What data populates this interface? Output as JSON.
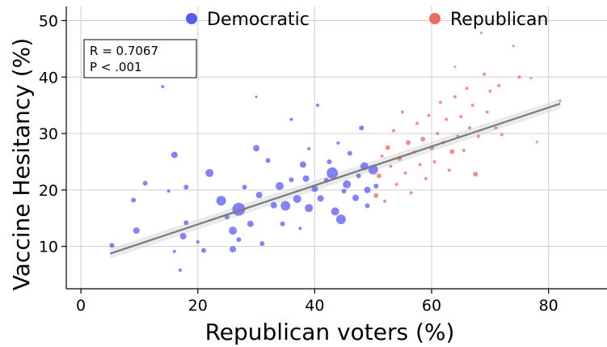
{
  "chart_data": {
    "type": "scatter",
    "title": "",
    "xlabel": "Republican voters (%)",
    "ylabel": "Vaccine Hesitancy (%)",
    "xlim": [
      -2.5,
      90
    ],
    "ylim": [
      2.5,
      52.5
    ],
    "xticks": [
      0,
      20,
      40,
      60,
      80
    ],
    "yticks": [
      10,
      20,
      30,
      40,
      50
    ],
    "grid": true,
    "legend_position": "top",
    "annotation": {
      "r_text": "R = 0.7067",
      "p_text": "P < .001"
    },
    "regression": {
      "slope": 0.345,
      "intercept": 7.0,
      "x_range": [
        5,
        82
      ],
      "ci_halfwidth": 0.9
    },
    "series": [
      {
        "name": "Democratic",
        "color": "#5b5bf0",
        "points": [
          [
            5.3,
            10.2,
            3
          ],
          [
            9,
            18.2,
            3
          ],
          [
            9.5,
            12.8,
            4
          ],
          [
            11,
            21.2,
            3
          ],
          [
            14,
            38.3,
            2
          ],
          [
            15,
            19.8,
            2
          ],
          [
            16,
            26.2,
            4
          ],
          [
            16,
            9.1,
            2
          ],
          [
            17,
            5.8,
            2
          ],
          [
            17.5,
            11.8,
            4
          ],
          [
            18,
            20.5,
            3
          ],
          [
            18,
            14.2,
            3
          ],
          [
            20,
            10.8,
            2
          ],
          [
            21,
            9.3,
            3
          ],
          [
            22,
            23.0,
            5
          ],
          [
            24,
            18.1,
            6
          ],
          [
            25,
            15.2,
            3
          ],
          [
            26,
            9.5,
            4
          ],
          [
            26,
            12.8,
            5
          ],
          [
            27,
            16.6,
            8
          ],
          [
            27,
            11.2,
            3
          ],
          [
            28,
            20.5,
            3
          ],
          [
            29,
            14.0,
            4
          ],
          [
            30,
            36.5,
            1.5
          ],
          [
            30,
            27.4,
            4
          ],
          [
            30.5,
            19.1,
            4
          ],
          [
            31,
            10.5,
            3
          ],
          [
            32,
            25.2,
            3
          ],
          [
            33,
            17.3,
            4
          ],
          [
            34,
            20.7,
            5
          ],
          [
            34.5,
            14.0,
            3
          ],
          [
            35,
            17.2,
            6
          ],
          [
            36,
            32.5,
            2
          ],
          [
            36,
            21.8,
            3
          ],
          [
            37,
            18.4,
            5
          ],
          [
            37.5,
            13.2,
            2
          ],
          [
            38,
            24.5,
            4
          ],
          [
            38.5,
            22.0,
            4
          ],
          [
            39,
            16.8,
            5
          ],
          [
            39,
            27.3,
            2
          ],
          [
            40,
            20.2,
            4
          ],
          [
            40.5,
            35.0,
            2
          ],
          [
            41,
            18.5,
            4
          ],
          [
            42,
            21.7,
            3
          ],
          [
            42.5,
            25.0,
            3
          ],
          [
            43,
            23.0,
            7
          ],
          [
            43.5,
            16.2,
            5
          ],
          [
            44,
            28.3,
            2
          ],
          [
            44.5,
            14.8,
            6
          ],
          [
            45,
            19.8,
            3
          ],
          [
            45.5,
            21.0,
            5
          ],
          [
            46,
            26.5,
            3
          ],
          [
            47,
            18.6,
            4
          ],
          [
            47.5,
            22.5,
            3
          ],
          [
            48,
            31.0,
            3
          ],
          [
            48.5,
            24.2,
            5
          ],
          [
            49,
            17.2,
            3
          ],
          [
            49,
            20.0,
            4
          ],
          [
            50,
            23.6,
            6
          ],
          [
            50.5,
            20.7,
            3
          ]
        ]
      },
      {
        "name": "Republican",
        "color": "#f06a6a",
        "points": [
          [
            50.5,
            19.0,
            3
          ],
          [
            51,
            22.5,
            3
          ],
          [
            51.5,
            26.0,
            2
          ],
          [
            52,
            18.0,
            2
          ],
          [
            52.5,
            27.5,
            3
          ],
          [
            53,
            24.2,
            2
          ],
          [
            53.5,
            30.5,
            2
          ],
          [
            54,
            21.0,
            2
          ],
          [
            54.5,
            25.6,
            3
          ],
          [
            55,
            33.8,
            2
          ],
          [
            55.5,
            23.0,
            2
          ],
          [
            56,
            28.4,
            3
          ],
          [
            56.5,
            19.5,
            2
          ],
          [
            57,
            26.7,
            2
          ],
          [
            57.5,
            31.8,
            2
          ],
          [
            58,
            24.5,
            2
          ],
          [
            58.5,
            29.0,
            3
          ],
          [
            59,
            22.0,
            2
          ],
          [
            59.5,
            33.2,
            2
          ],
          [
            60,
            27.5,
            3
          ],
          [
            60.5,
            25.0,
            2
          ],
          [
            61,
            30.0,
            2
          ],
          [
            61.5,
            35.5,
            2
          ],
          [
            62,
            28.4,
            2
          ],
          [
            62.5,
            32.5,
            2
          ],
          [
            63,
            23.5,
            2
          ],
          [
            63.5,
            26.8,
            3
          ],
          [
            64,
            36.5,
            2
          ],
          [
            64,
            41.8,
            1.5
          ],
          [
            64.5,
            29.5,
            2
          ],
          [
            65,
            33.0,
            2
          ],
          [
            65.5,
            27.0,
            2
          ],
          [
            66,
            38.0,
            2
          ],
          [
            66.5,
            31.0,
            2
          ],
          [
            67,
            35.0,
            2
          ],
          [
            67.5,
            22.8,
            3
          ],
          [
            68,
            29.5,
            2
          ],
          [
            68.5,
            47.8,
            1.5
          ],
          [
            69,
            40.5,
            2
          ],
          [
            69.5,
            33.8,
            2
          ],
          [
            70,
            37.5,
            2
          ],
          [
            71,
            31.0,
            2
          ],
          [
            71.5,
            38.5,
            2
          ],
          [
            72,
            29.8,
            2
          ],
          [
            74,
            45.5,
            1.5
          ],
          [
            75,
            40.0,
            2
          ],
          [
            77,
            39.8,
            1.5
          ],
          [
            78,
            28.5,
            1.5
          ],
          [
            82,
            35.8,
            1.5
          ]
        ]
      }
    ]
  }
}
